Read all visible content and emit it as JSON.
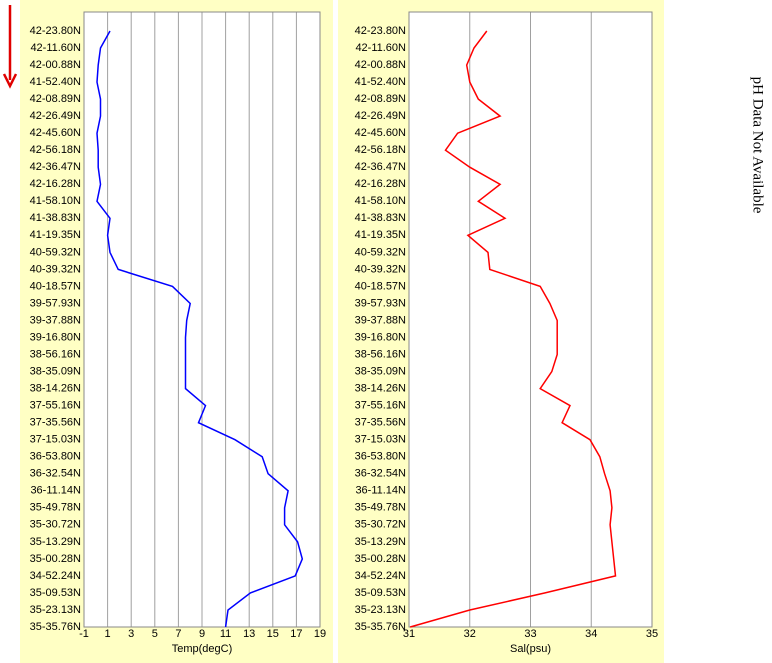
{
  "chart_data": [
    {
      "type": "line",
      "orientation": "horizontal",
      "xlabel": "Temp(degC)",
      "color": "#0000ff",
      "xlim": [
        -1,
        19
      ],
      "xticks": [
        -1,
        1,
        3,
        5,
        7,
        9,
        11,
        13,
        15,
        17,
        19
      ],
      "grid": true,
      "categories": [
        "42-23.80N",
        "42-11.60N",
        "42-00.88N",
        "41-52.40N",
        "42-08.89N",
        "42-26.49N",
        "42-45.60N",
        "42-56.18N",
        "42-36.47N",
        "42-16.28N",
        "41-58.10N",
        "41-38.83N",
        "41-19.35N",
        "40-59.32N",
        "40-39.32N",
        "40-18.57N",
        "39-57.93N",
        "39-37.88N",
        "39-16.80N",
        "38-56.16N",
        "38-35.09N",
        "38-14.26N",
        "37-55.16N",
        "37-35.56N",
        "37-15.03N",
        "36-53.80N",
        "36-32.54N",
        "36-11.14N",
        "35-49.78N",
        "35-30.72N",
        "35-13.29N",
        "35-00.28N",
        "34-52.24N",
        "35-09.53N",
        "35-23.13N",
        "35-35.76N"
      ],
      "values": [
        1.2,
        0.4,
        0.2,
        0.1,
        0.4,
        0.4,
        0.1,
        0.2,
        0.2,
        0.4,
        0.1,
        1.2,
        1.0,
        1.2,
        1.9,
        6.5,
        8.0,
        7.7,
        7.6,
        7.6,
        7.6,
        7.6,
        9.3,
        8.7,
        11.8,
        14.1,
        14.6,
        16.3,
        16.0,
        16.0,
        17.1,
        17.5,
        16.9,
        13.1,
        11.2,
        11.0
      ]
    },
    {
      "type": "line",
      "orientation": "horizontal",
      "xlabel": "Sal(psu)",
      "color": "#ff0000",
      "xlim": [
        31,
        35
      ],
      "xticks": [
        31,
        32,
        33,
        34,
        35
      ],
      "grid": true,
      "categories": [
        "42-23.80N",
        "42-11.60N",
        "42-00.88N",
        "41-52.40N",
        "42-08.89N",
        "42-26.49N",
        "42-45.60N",
        "42-56.18N",
        "42-36.47N",
        "42-16.28N",
        "41-58.10N",
        "41-38.83N",
        "41-19.35N",
        "40-59.32N",
        "40-39.32N",
        "40-18.57N",
        "39-57.93N",
        "39-37.88N",
        "39-16.80N",
        "38-56.16N",
        "38-35.09N",
        "38-14.26N",
        "37-55.16N",
        "37-35.56N",
        "37-15.03N",
        "36-53.80N",
        "36-32.54N",
        "36-11.14N",
        "35-49.78N",
        "35-30.72N",
        "35-13.29N",
        "35-00.28N",
        "34-52.24N",
        "35-09.53N",
        "35-23.13N",
        "35-35.76N"
      ],
      "values": [
        32.28,
        32.07,
        31.95,
        32.0,
        32.14,
        32.5,
        31.8,
        31.6,
        32.0,
        32.5,
        32.14,
        32.58,
        31.97,
        32.3,
        32.33,
        33.16,
        33.32,
        33.44,
        33.44,
        33.44,
        33.35,
        33.16,
        33.65,
        33.52,
        33.98,
        34.14,
        34.22,
        34.31,
        34.34,
        34.31,
        34.34,
        34.37,
        34.4,
        33.24,
        32.0,
        31.02
      ]
    }
  ],
  "note": "pH Data Not Available"
}
